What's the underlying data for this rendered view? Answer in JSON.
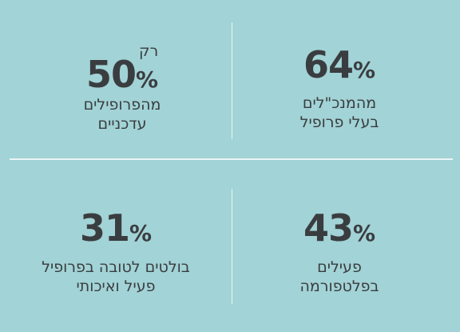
{
  "stats": [
    {
      "id": "top-right",
      "number": "64",
      "percent_sign": "%",
      "lines": [
        "מהמנכ\"לים",
        "בעלי פרופיל"
      ]
    },
    {
      "id": "top-left",
      "prefix": "רק",
      "number": "50",
      "percent_sign": "%",
      "lines": [
        "מהפרופילים",
        "עדכניים"
      ]
    },
    {
      "id": "bottom-right",
      "number": "43",
      "percent_sign": "%",
      "lines": [
        "פעילים",
        "בפלטפורמה"
      ]
    },
    {
      "id": "bottom-left",
      "number": "31",
      "percent_sign": "%",
      "lines": [
        "בולטים לטובה בפרופיל",
        "פעיל ואיכותי"
      ]
    }
  ],
  "colors": {
    "background": "#a2d3d6",
    "text": "#3a3d40",
    "divider": "#e9f5f6"
  }
}
